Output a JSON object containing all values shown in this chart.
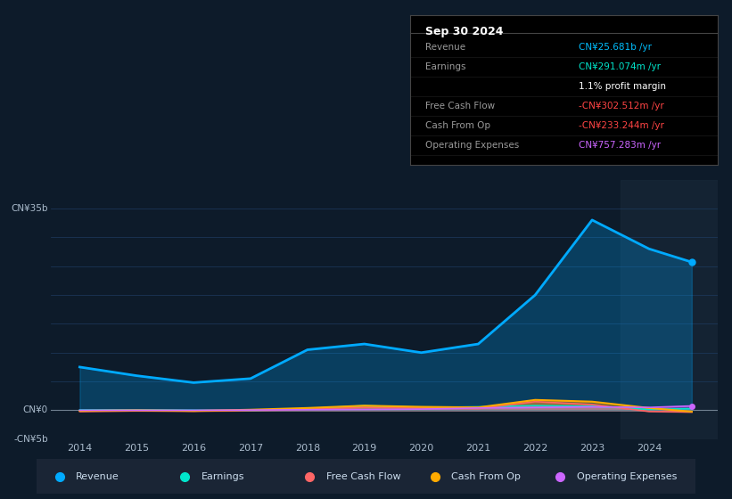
{
  "bg_color": "#0d1b2a",
  "plot_bg_color": "#0d1b2a",
  "grid_color": "#1e3a5f",
  "title_text": "Sep 30 2024",
  "table_data": {
    "Revenue": {
      "value": "CN¥25.681b /yr",
      "color": "#00bfff"
    },
    "Earnings": {
      "value": "CN¥291.074m /yr",
      "color": "#00e5cc"
    },
    "profit_margin": {
      "value": "1.1% profit margin",
      "color": "#ffffff"
    },
    "Free Cash Flow": {
      "value": "-CN¥302.512m /yr",
      "color": "#ff4444"
    },
    "Cash From Op": {
      "value": "-CN¥233.244m /yr",
      "color": "#ff4444"
    },
    "Operating Expenses": {
      "value": "CN¥757.283m /yr",
      "color": "#cc66ff"
    }
  },
  "ylim": [
    -5000000000,
    40000000000
  ],
  "yticks": [
    -5000000000,
    0,
    5000000000,
    10000000000,
    15000000000,
    20000000000,
    25000000000,
    30000000000,
    35000000000
  ],
  "years": [
    2014,
    2015,
    2016,
    2017,
    2018,
    2019,
    2020,
    2021,
    2022,
    2023,
    2024,
    2024.75
  ],
  "revenue": [
    7500000000,
    6000000000,
    4800000000,
    5500000000,
    10500000000,
    11500000000,
    10000000000,
    11500000000,
    20000000000,
    33000000000,
    28000000000,
    25700000000
  ],
  "earnings": [
    50000000,
    80000000,
    20000000,
    -50000000,
    300000000,
    800000000,
    500000000,
    600000000,
    800000000,
    700000000,
    150000000,
    291000000
  ],
  "free_cash_flow": [
    -200000000,
    -100000000,
    -150000000,
    -50000000,
    200000000,
    500000000,
    400000000,
    300000000,
    1500000000,
    1000000000,
    -200000000,
    -302000000
  ],
  "cash_from_op": [
    -100000000,
    0,
    -100000000,
    100000000,
    400000000,
    800000000,
    600000000,
    500000000,
    1800000000,
    1500000000,
    400000000,
    -233000000
  ],
  "op_expenses": [
    0,
    0,
    0,
    50000000,
    100000000,
    150000000,
    200000000,
    400000000,
    500000000,
    600000000,
    500000000,
    757000000
  ],
  "revenue_color": "#00aaff",
  "earnings_color": "#00e5cc",
  "free_cash_flow_color": "#ff6666",
  "cash_from_op_color": "#ffaa00",
  "op_expenses_color": "#cc66ff",
  "legend_items": [
    {
      "label": "Revenue",
      "color": "#00aaff"
    },
    {
      "label": "Earnings",
      "color": "#00e5cc"
    },
    {
      "label": "Free Cash Flow",
      "color": "#ff6666"
    },
    {
      "label": "Cash From Op",
      "color": "#ffaa00"
    },
    {
      "label": "Operating Expenses",
      "color": "#cc66ff"
    }
  ]
}
